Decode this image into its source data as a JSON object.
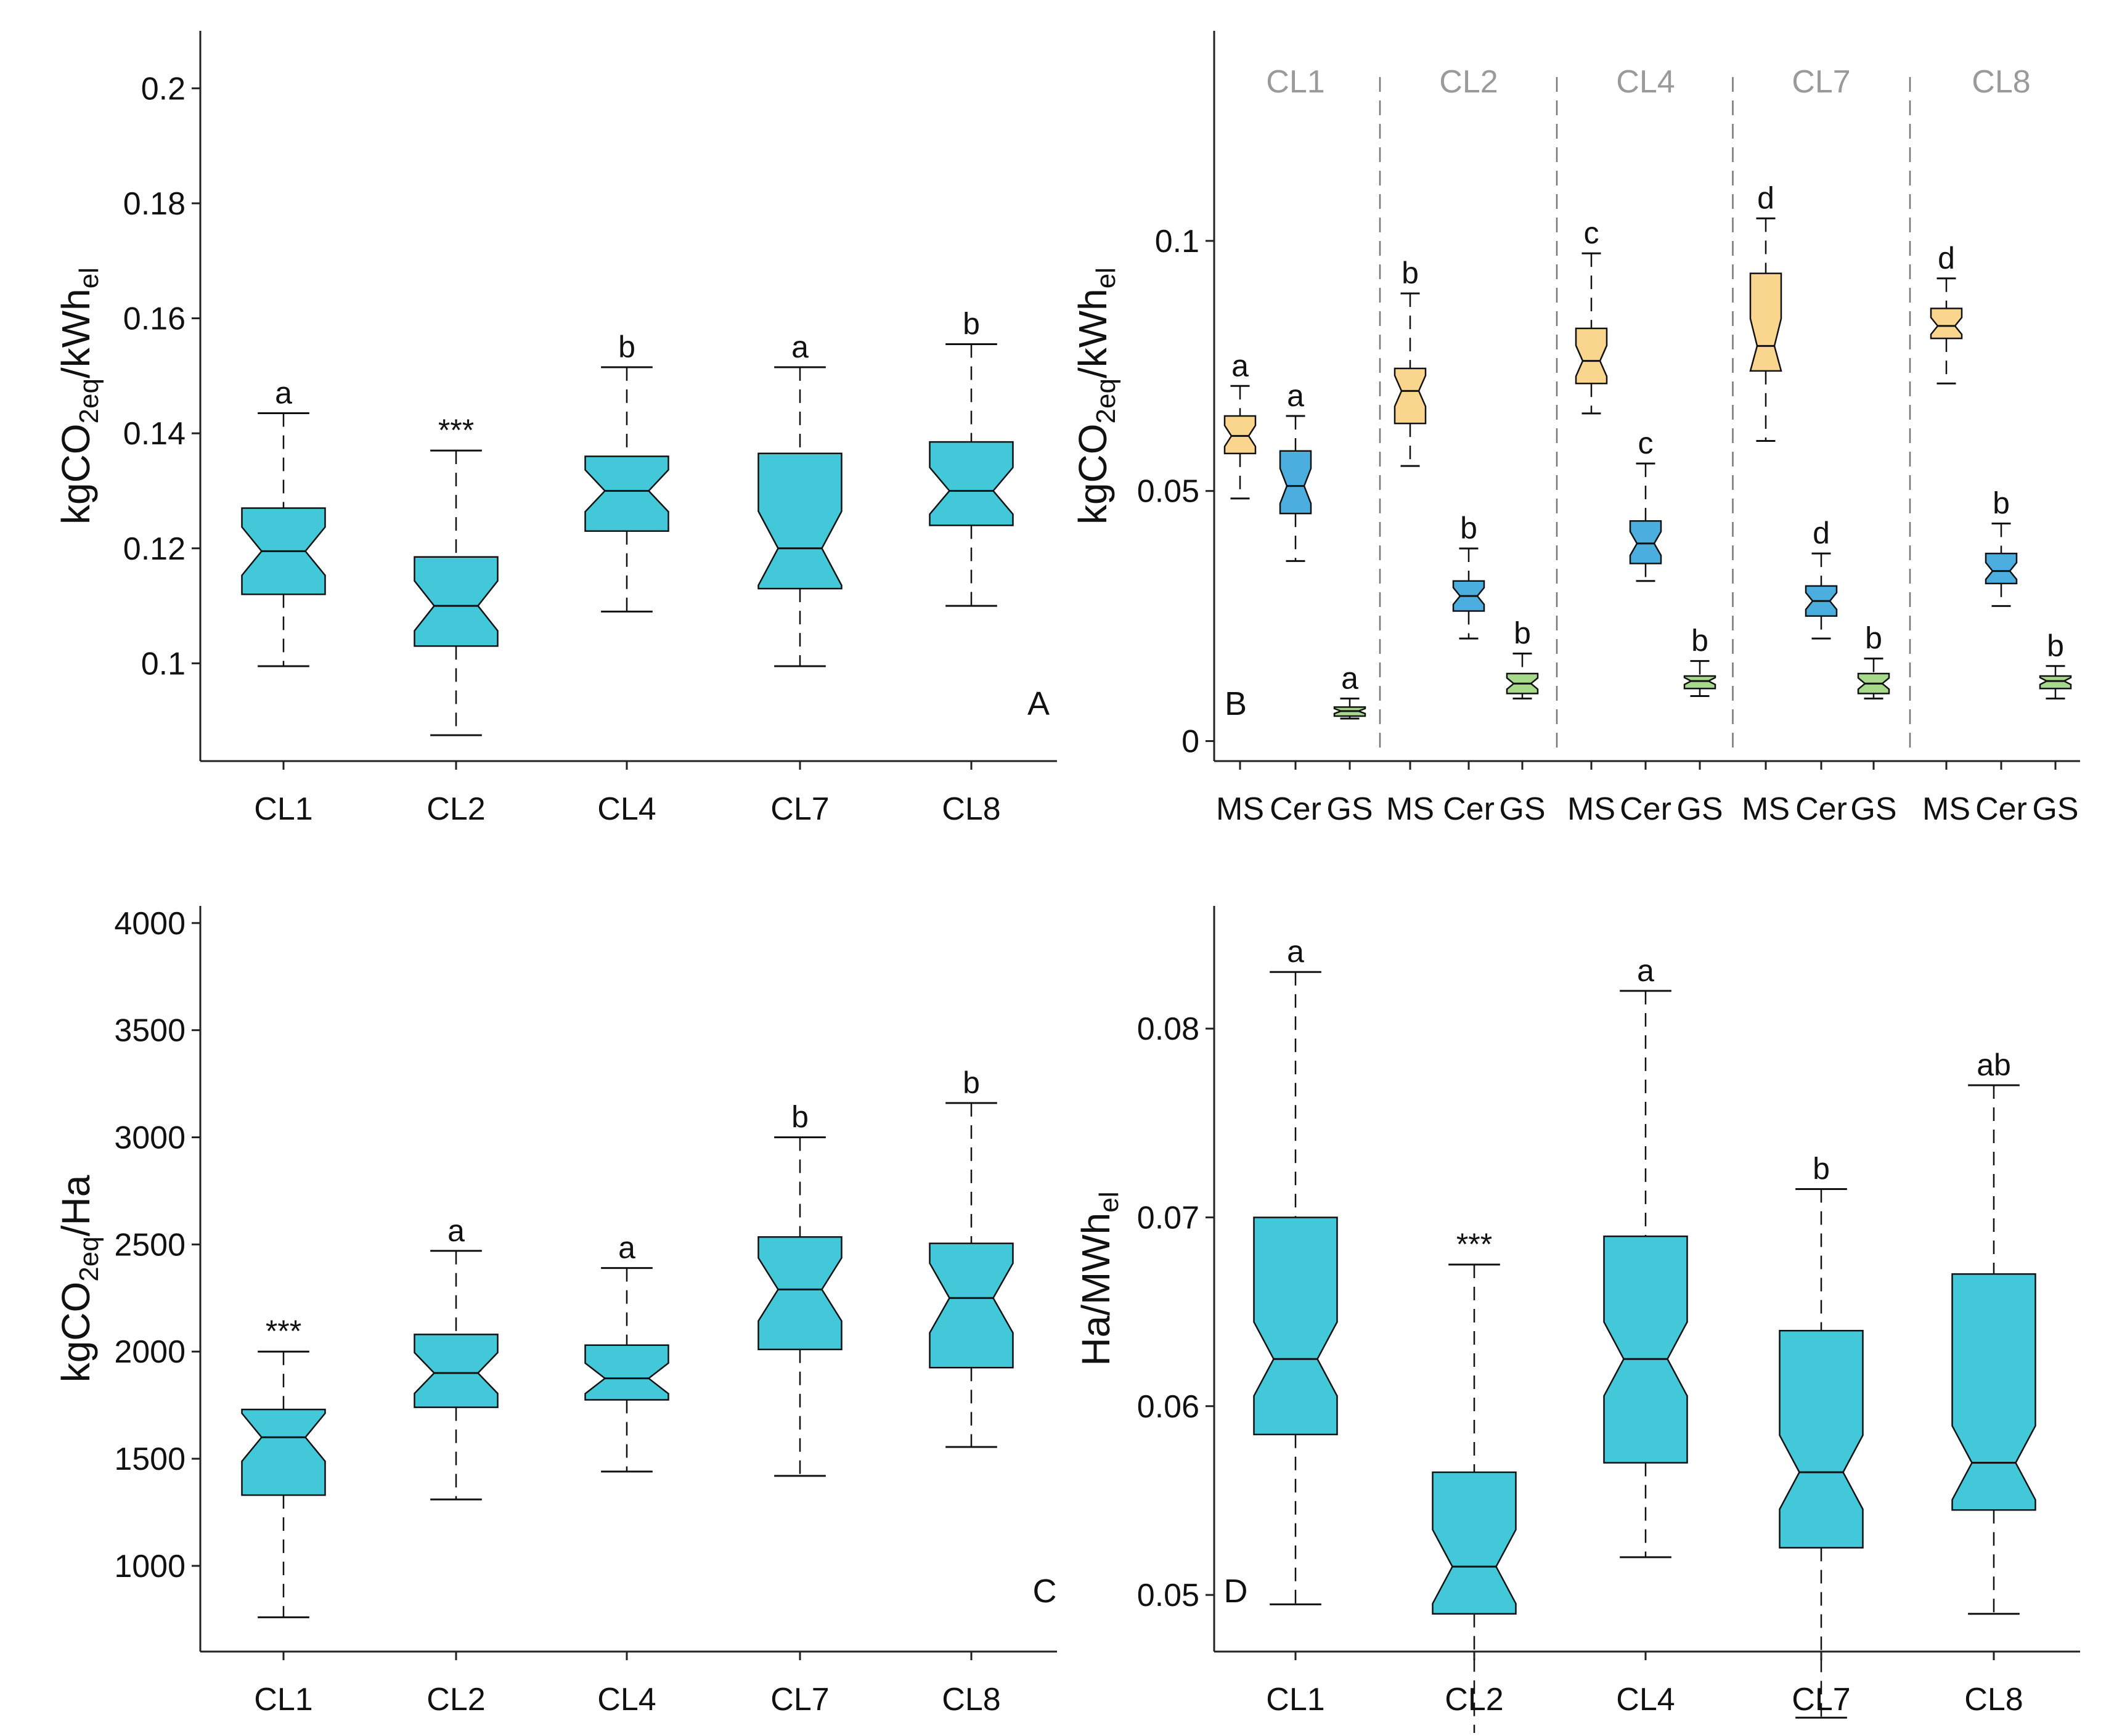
{
  "chart_data": [
    {
      "id": "A",
      "type": "boxplot",
      "panel_label": "A",
      "ylabel": {
        "main": "kgCO",
        "sub": "2eq",
        "mid": "/kWh",
        "sub2": "el"
      },
      "ylim": [
        0.083,
        0.21
      ],
      "yticks": [
        0.1,
        0.12,
        0.14,
        0.16,
        0.18,
        0.2
      ],
      "ytick_labels": [
        "0.1",
        "0.12",
        "0.14",
        "0.16",
        "0.18",
        "0.2"
      ],
      "categories": [
        "CL1",
        "CL2",
        "CL4",
        "CL7",
        "CL8"
      ],
      "fill": "#42C8D8",
      "boxes": [
        {
          "label": "CL1",
          "min": 0.0995,
          "q1": 0.112,
          "median": 0.1195,
          "q3": 0.127,
          "max": 0.1435,
          "sig": "a"
        },
        {
          "label": "CL2",
          "min": 0.0875,
          "q1": 0.103,
          "median": 0.11,
          "q3": 0.1185,
          "max": 0.137,
          "sig": "***"
        },
        {
          "label": "CL4",
          "min": 0.109,
          "q1": 0.123,
          "median": 0.13,
          "q3": 0.136,
          "max": 0.1515,
          "sig": "b"
        },
        {
          "label": "CL7",
          "min": 0.0995,
          "q1": 0.113,
          "median": 0.12,
          "q3": 0.1365,
          "max": 0.1515,
          "sig": "a"
        },
        {
          "label": "CL8",
          "min": 0.11,
          "q1": 0.124,
          "median": 0.13,
          "q3": 0.1385,
          "max": 0.1555,
          "sig": "b"
        }
      ]
    },
    {
      "id": "B",
      "type": "boxplot",
      "panel_label": "B",
      "ylabel": {
        "main": "kgCO",
        "sub": "2eq",
        "mid": "/kWh",
        "sub2": "el"
      },
      "ylim": [
        -0.004,
        0.142
      ],
      "yticks": [
        0,
        0.05,
        0.1
      ],
      "ytick_labels": [
        "0",
        "0.05",
        "0.1"
      ],
      "group_labels": [
        "CL1",
        "CL2",
        "CL4",
        "CL7",
        "CL8"
      ],
      "categories": [
        "MS",
        "Cer",
        "GS",
        "MS",
        "Cer",
        "GS",
        "MS",
        "Cer",
        "GS",
        "MS",
        "Cer",
        "GS",
        "MS",
        "Cer",
        "GS"
      ],
      "colors": {
        "MS": "#FAD58E",
        "Cer": "#4BAEDE",
        "GS": "#A6D98A"
      },
      "boxes": [
        {
          "group": "CL1",
          "label": "MS",
          "min": 0.0485,
          "q1": 0.0575,
          "median": 0.061,
          "q3": 0.065,
          "max": 0.071,
          "sig": "a"
        },
        {
          "group": "CL1",
          "label": "Cer",
          "min": 0.036,
          "q1": 0.0455,
          "median": 0.051,
          "q3": 0.058,
          "max": 0.065,
          "sig": "a"
        },
        {
          "group": "CL1",
          "label": "GS",
          "min": 0.0045,
          "q1": 0.005,
          "median": 0.006,
          "q3": 0.0068,
          "max": 0.0085,
          "sig": "a"
        },
        {
          "group": "CL2",
          "label": "MS",
          "min": 0.055,
          "q1": 0.0635,
          "median": 0.07,
          "q3": 0.0745,
          "max": 0.0895,
          "sig": "b"
        },
        {
          "group": "CL2",
          "label": "Cer",
          "min": 0.0205,
          "q1": 0.026,
          "median": 0.029,
          "q3": 0.032,
          "max": 0.0385,
          "sig": "b"
        },
        {
          "group": "CL2",
          "label": "GS",
          "min": 0.0085,
          "q1": 0.0095,
          "median": 0.0115,
          "q3": 0.0135,
          "max": 0.0175,
          "sig": "b"
        },
        {
          "group": "CL4",
          "label": "MS",
          "min": 0.0655,
          "q1": 0.0715,
          "median": 0.076,
          "q3": 0.0825,
          "max": 0.0975,
          "sig": "c"
        },
        {
          "group": "CL4",
          "label": "Cer",
          "min": 0.032,
          "q1": 0.0355,
          "median": 0.0395,
          "q3": 0.044,
          "max": 0.0555,
          "sig": "c"
        },
        {
          "group": "CL4",
          "label": "GS",
          "min": 0.009,
          "q1": 0.0105,
          "median": 0.012,
          "q3": 0.013,
          "max": 0.016,
          "sig": "b"
        },
        {
          "group": "CL7",
          "label": "MS",
          "min": 0.06,
          "q1": 0.074,
          "median": 0.079,
          "q3": 0.0935,
          "max": 0.1045,
          "sig": "d"
        },
        {
          "group": "CL7",
          "label": "Cer",
          "min": 0.0205,
          "q1": 0.025,
          "median": 0.028,
          "q3": 0.031,
          "max": 0.0375,
          "sig": "d"
        },
        {
          "group": "CL7",
          "label": "GS",
          "min": 0.0085,
          "q1": 0.0095,
          "median": 0.0115,
          "q3": 0.0135,
          "max": 0.0165,
          "sig": "b"
        },
        {
          "group": "CL8",
          "label": "MS",
          "min": 0.0715,
          "q1": 0.0805,
          "median": 0.083,
          "q3": 0.0865,
          "max": 0.0925,
          "sig": "d"
        },
        {
          "group": "CL8",
          "label": "Cer",
          "min": 0.027,
          "q1": 0.0315,
          "median": 0.034,
          "q3": 0.0375,
          "max": 0.0435,
          "sig": "b"
        },
        {
          "group": "CL8",
          "label": "GS",
          "min": 0.0085,
          "q1": 0.0105,
          "median": 0.012,
          "q3": 0.013,
          "max": 0.015,
          "sig": "b"
        }
      ]
    },
    {
      "id": "C",
      "type": "boxplot",
      "panel_label": "C",
      "ylabel": {
        "main": "kgCO",
        "sub": "2eq",
        "mid": "/Ha",
        "sub2": ""
      },
      "ylim": [
        600,
        4080
      ],
      "yticks": [
        1000,
        1500,
        2000,
        2500,
        3000,
        3500,
        4000
      ],
      "ytick_labels": [
        "1000",
        "1500",
        "2000",
        "2500",
        "3000",
        "3500",
        "4000"
      ],
      "categories": [
        "CL1",
        "CL2",
        "CL4",
        "CL7",
        "CL8"
      ],
      "fill": "#42C8D8",
      "boxes": [
        {
          "label": "CL1",
          "min": 760,
          "q1": 1330,
          "median": 1600,
          "q3": 1730,
          "max": 2000,
          "sig": "***"
        },
        {
          "label": "CL2",
          "min": 1310,
          "q1": 1740,
          "median": 1900,
          "q3": 2080,
          "max": 2470,
          "sig": "a"
        },
        {
          "label": "CL4",
          "min": 1440,
          "q1": 1775,
          "median": 1875,
          "q3": 2030,
          "max": 2390,
          "sig": "a"
        },
        {
          "label": "CL7",
          "min": 1420,
          "q1": 2010,
          "median": 2290,
          "q3": 2535,
          "max": 3000,
          "sig": "b"
        },
        {
          "label": "CL8",
          "min": 1555,
          "q1": 1925,
          "median": 2250,
          "q3": 2505,
          "max": 3160,
          "sig": "b"
        }
      ]
    },
    {
      "id": "D",
      "type": "boxplot",
      "panel_label": "D",
      "ylabel": {
        "main": "Ha/MWh",
        "sub": "",
        "mid": "",
        "sub2": "el"
      },
      "ylim": [
        0.047,
        0.0865
      ],
      "yticks": [
        0.05,
        0.06,
        0.07,
        0.08
      ],
      "ytick_labels": [
        "0.05",
        "0.06",
        "0.07",
        "0.08"
      ],
      "categories": [
        "CL1",
        "CL2",
        "CL4",
        "CL7",
        "CL8"
      ],
      "fill": "#42C8D8",
      "boxes": [
        {
          "label": "CL1",
          "min": 0.0495,
          "q1": 0.0585,
          "median": 0.0625,
          "q3": 0.07,
          "max": 0.083,
          "sig": "a"
        },
        {
          "label": "CL2",
          "min": 0.0425,
          "q1": 0.049,
          "median": 0.0515,
          "q3": 0.0565,
          "max": 0.0675,
          "sig": "***"
        },
        {
          "label": "CL4",
          "min": 0.052,
          "q1": 0.057,
          "median": 0.0625,
          "q3": 0.069,
          "max": 0.082,
          "sig": "a"
        },
        {
          "label": "CL7",
          "min": 0.0435,
          "q1": 0.0525,
          "median": 0.0565,
          "q3": 0.064,
          "max": 0.0715,
          "sig": "b"
        },
        {
          "label": "CL8",
          "min": 0.049,
          "q1": 0.0545,
          "median": 0.057,
          "q3": 0.067,
          "max": 0.077,
          "sig": "ab"
        }
      ]
    }
  ]
}
